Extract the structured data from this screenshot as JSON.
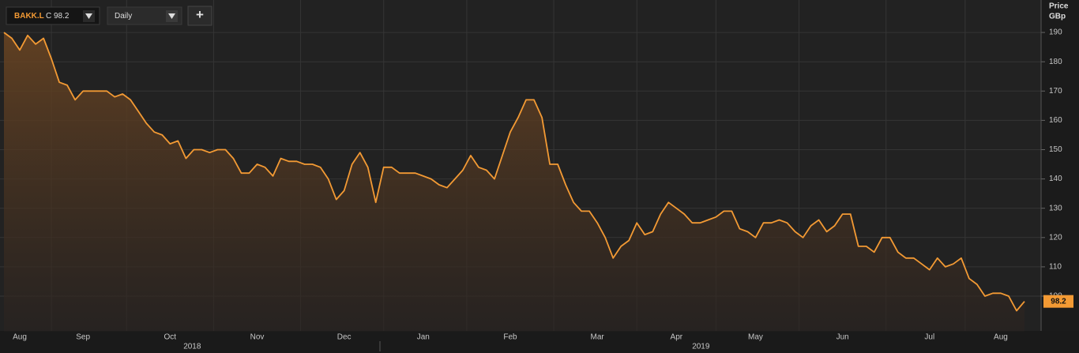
{
  "toolbar": {
    "symbol": "BAKK.L",
    "close": "C 98.2",
    "interval": "Daily",
    "add": "+"
  },
  "chart_data": {
    "type": "line",
    "y_axis_title": "Price",
    "y_axis_unit": "GBp",
    "categories": [
      null,
      null,
      "Aug",
      null,
      null,
      null,
      null,
      null,
      null,
      null,
      "Sep",
      null,
      null,
      null,
      null,
      null,
      null,
      null,
      null,
      null,
      null,
      "Oct",
      null,
      null,
      null,
      null,
      null,
      null,
      null,
      null,
      null,
      null,
      "Nov",
      null,
      null,
      null,
      null,
      null,
      null,
      null,
      null,
      null,
      null,
      "Dec",
      null,
      null,
      null,
      null,
      null,
      null,
      null,
      null,
      null,
      "Jan",
      null,
      null,
      null,
      null,
      null,
      null,
      null,
      null,
      null,
      null,
      "Feb",
      null,
      null,
      null,
      null,
      null,
      null,
      null,
      null,
      null,
      null,
      "Mar",
      null,
      null,
      null,
      null,
      null,
      null,
      null,
      null,
      null,
      "Apr",
      null,
      null,
      null,
      null,
      null,
      null,
      null,
      null,
      null,
      "May",
      null,
      null,
      null,
      null,
      null,
      null,
      null,
      null,
      null,
      null,
      "Jun",
      null,
      null,
      null,
      null,
      null,
      null,
      null,
      null,
      null,
      null,
      "Jul",
      null,
      null,
      null,
      null,
      null,
      null,
      null,
      null,
      "Aug",
      null,
      null,
      null
    ],
    "years": [
      "2018",
      "2019"
    ],
    "values": [
      190,
      188,
      184,
      189,
      186,
      188,
      181,
      173,
      172,
      167,
      170,
      170,
      170,
      170,
      168,
      169,
      167,
      163,
      159,
      156,
      155,
      152,
      153,
      147,
      150,
      150,
      149,
      150,
      150,
      147,
      142,
      142,
      145,
      144,
      141,
      147,
      146,
      146,
      145,
      145,
      144,
      140,
      133,
      136,
      145,
      149,
      144,
      132,
      144,
      144,
      142,
      142,
      142,
      141,
      140,
      138,
      137,
      140,
      143,
      148,
      144,
      143,
      140,
      148,
      156,
      161,
      167,
      167,
      161,
      145,
      145,
      138,
      132,
      129,
      129,
      125,
      120,
      113,
      117,
      119,
      125,
      121,
      122,
      128,
      132,
      130,
      128,
      125,
      125,
      126,
      127,
      129,
      129,
      123,
      122,
      120,
      125,
      125,
      126,
      125,
      122,
      120,
      124,
      126,
      122,
      124,
      128,
      128,
      117,
      117,
      115,
      120,
      120,
      115,
      113,
      113,
      111,
      109,
      113,
      110,
      111,
      113,
      106,
      104,
      100,
      101,
      101,
      100,
      95,
      98.2
    ],
    "color": "#f39a34",
    "ylim": [
      88,
      200
    ],
    "yticks": [
      100,
      110,
      120,
      130,
      140,
      150,
      160,
      170,
      180,
      190
    ],
    "grid": true
  }
}
